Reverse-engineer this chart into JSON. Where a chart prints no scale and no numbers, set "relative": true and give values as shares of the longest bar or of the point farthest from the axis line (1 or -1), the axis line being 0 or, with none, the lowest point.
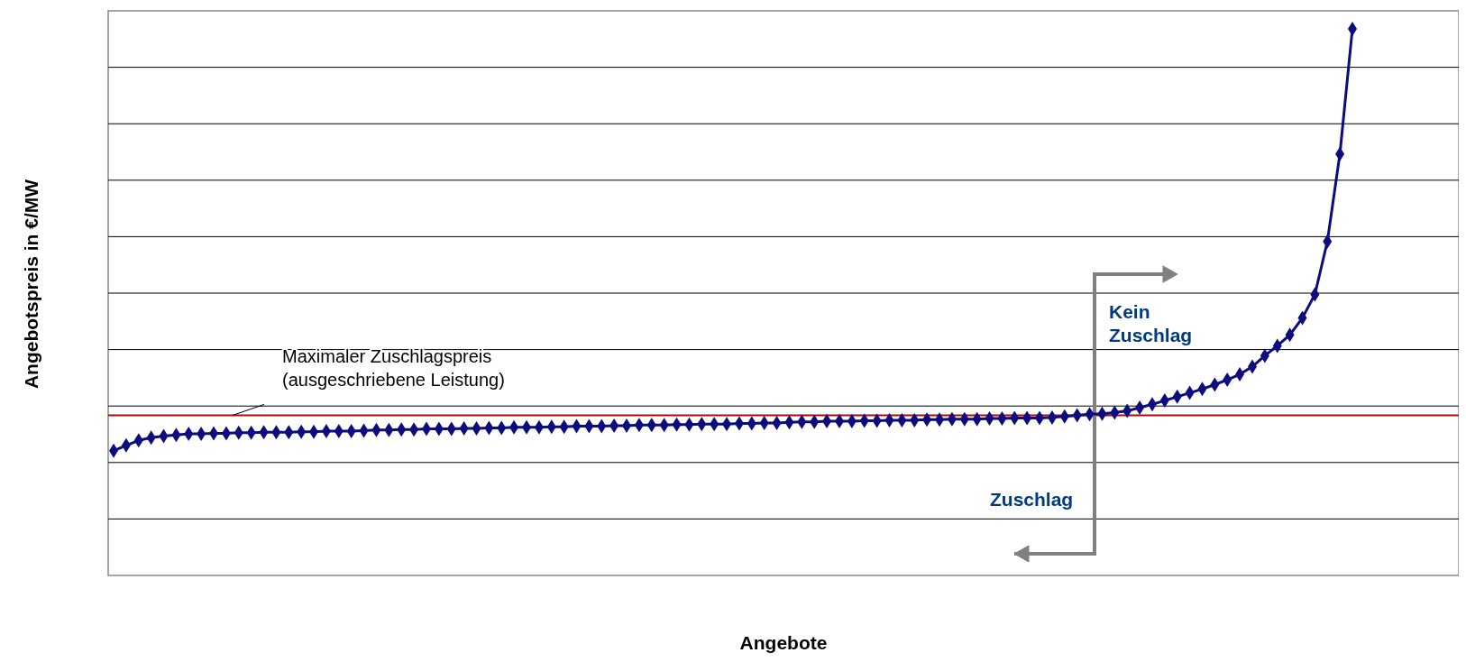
{
  "chart_data": {
    "type": "line",
    "relative": true,
    "xlabel": "Angebote",
    "ylabel": "Angebotspreis in €/MW",
    "marker": "diamond",
    "grid": true,
    "categories": [
      null,
      null,
      null,
      null,
      null,
      null,
      null,
      null,
      null,
      null,
      null,
      null,
      null,
      null,
      null,
      null,
      null,
      null,
      null,
      null,
      null,
      null,
      null,
      null,
      null,
      null,
      null,
      null,
      null,
      null,
      null,
      null,
      null,
      null,
      null,
      null,
      null,
      null,
      null,
      null,
      null,
      null,
      null,
      null,
      null,
      null,
      null,
      null,
      null,
      null,
      null,
      null,
      null,
      null,
      null,
      null,
      null,
      null,
      null,
      null,
      null,
      null,
      null,
      null,
      null,
      null,
      null,
      null,
      null,
      null,
      null,
      null,
      null,
      null,
      null,
      null,
      null,
      null,
      null,
      null,
      null,
      null,
      null,
      null,
      null,
      null,
      null,
      null,
      null,
      null,
      null,
      null,
      null,
      null,
      null,
      null,
      null,
      null,
      null,
      null
    ],
    "series": [
      {
        "color": "#0c0c7e",
        "values": [
          0.228,
          0.238,
          0.247,
          0.252,
          0.255,
          0.257,
          0.259,
          0.259,
          0.26,
          0.26,
          0.261,
          0.261,
          0.262,
          0.262,
          0.262,
          0.263,
          0.263,
          0.264,
          0.264,
          0.264,
          0.265,
          0.266,
          0.266,
          0.267,
          0.267,
          0.268,
          0.268,
          0.268,
          0.269,
          0.269,
          0.27,
          0.27,
          0.271,
          0.271,
          0.271,
          0.272,
          0.272,
          0.273,
          0.273,
          0.273,
          0.274,
          0.274,
          0.275,
          0.275,
          0.275,
          0.276,
          0.276,
          0.277,
          0.277,
          0.277,
          0.278,
          0.278,
          0.279,
          0.279,
          0.28,
          0.281,
          0.281,
          0.282,
          0.282,
          0.282,
          0.283,
          0.283,
          0.284,
          0.284,
          0.284,
          0.285,
          0.285,
          0.286,
          0.286,
          0.286,
          0.287,
          0.287,
          0.288,
          0.288,
          0.288,
          0.289,
          0.291,
          0.293,
          0.295,
          0.296,
          0.298,
          0.301,
          0.307,
          0.313,
          0.32,
          0.327,
          0.334,
          0.341,
          0.349,
          0.358,
          0.368,
          0.382,
          0.402,
          0.42,
          0.44,
          0.471,
          0.514,
          0.611,
          0.771,
          1
        ]
      }
    ],
    "ref_lines": [
      {
        "axis": "y",
        "value": 0.293,
        "label": "Maximaler Zuschlagspreis\n(ausgeschriebene Leistung)",
        "color": "#c00000"
      }
    ],
    "annotations": [
      "Kein Zuschlag",
      "Zuschlag"
    ]
  }
}
